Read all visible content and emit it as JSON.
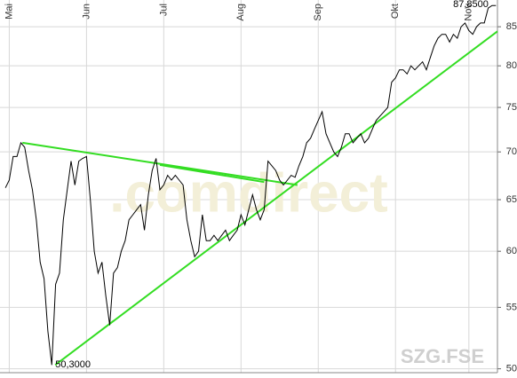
{
  "chart_data": {
    "type": "line",
    "watermark": ".comdirect",
    "symbol": "SZG.FSE",
    "x": [
      0,
      1,
      2,
      3,
      4,
      5,
      6,
      7,
      8,
      9,
      10,
      11,
      12,
      13,
      14,
      15,
      16,
      17,
      18,
      19,
      20,
      21,
      22,
      23,
      24,
      25,
      26,
      27,
      28,
      29,
      30,
      31,
      32,
      33,
      34,
      35,
      36,
      37,
      38,
      39,
      40,
      41,
      42,
      43,
      44,
      45,
      46,
      47,
      48,
      49,
      50,
      51,
      52,
      53,
      54,
      55,
      56,
      57,
      58,
      59,
      60,
      61,
      62,
      63,
      64,
      65,
      66,
      67,
      68,
      69,
      70,
      71,
      72,
      73,
      74,
      75,
      76,
      77,
      78,
      79,
      80,
      81,
      82,
      83,
      84,
      85,
      86,
      87,
      88,
      89,
      90,
      91,
      92,
      93,
      94,
      95,
      96,
      97,
      98,
      99,
      100,
      101,
      102,
      103,
      104,
      105,
      106,
      107,
      108,
      109,
      110,
      111,
      112,
      113,
      114,
      115,
      116,
      117,
      118,
      119,
      120,
      121,
      122,
      123,
      124,
      125,
      126,
      127
    ],
    "series": [
      {
        "name": "SZG.FSE",
        "color": "#000000",
        "values": [
          66.2,
          67,
          69.5,
          69.5,
          71,
          70.5,
          68,
          66,
          63,
          59,
          57.5,
          53,
          50.3,
          57,
          58,
          63,
          66,
          69,
          66.5,
          69,
          69.3,
          69.5,
          65,
          60,
          58,
          59,
          56,
          53.5,
          58,
          58.5,
          60,
          61,
          63,
          63.5,
          64,
          64.5,
          62,
          65.5,
          68,
          69.3,
          66,
          66.5,
          67.5,
          67,
          67.5,
          67,
          66.5,
          63,
          61,
          59.5,
          60,
          63.5,
          61,
          61,
          61.5,
          61,
          61.5,
          62,
          61,
          61.5,
          62,
          63.5,
          62.5,
          64,
          65.5,
          64,
          63,
          64,
          69,
          68.5,
          68,
          67,
          66.5,
          67,
          67.5,
          67.3,
          68.5,
          69.5,
          71,
          71.5,
          72.5,
          73.5,
          74.5,
          72,
          71,
          70,
          69.5,
          70.5,
          72,
          72,
          71,
          71.5,
          72,
          71,
          71.5,
          72.5,
          73.5,
          74,
          74.5,
          75,
          78,
          78.5,
          79.5,
          79.5,
          79,
          80,
          79.5,
          80,
          80.5,
          79.5,
          81,
          82.5,
          83.5,
          84,
          84,
          83,
          84,
          83.5,
          85,
          85.5,
          84.5,
          84,
          85,
          85.5,
          85.5,
          87.5,
          87.85,
          87.85
        ]
      }
    ],
    "trendlines": {
      "color": "#33dd22",
      "lines": [
        {
          "x": [
            4.4,
            75.6
          ],
          "y": [
            71,
            66.5
          ]
        },
        {
          "x": [
            40,
            67
          ],
          "y": [
            68.6,
            66.8
          ]
        },
        {
          "x": [
            12.9,
            127.4
          ],
          "y": [
            50.3,
            84.4
          ]
        }
      ]
    },
    "annotations": [
      {
        "text": "87,8500",
        "x": 126,
        "y": 87.85
      },
      {
        "text": "50,3000",
        "x": 12,
        "y": 50.3
      }
    ],
    "xlim": [
      -1.4,
      127.4
    ],
    "xticks": [
      {
        "value": 1,
        "label": "Mai"
      },
      {
        "value": 21,
        "label": "Jun"
      },
      {
        "value": 41,
        "label": "Jul"
      },
      {
        "value": 61,
        "label": "Aug"
      },
      {
        "value": 81,
        "label": "Sep"
      },
      {
        "value": 101,
        "label": "Okt"
      },
      {
        "value": 120,
        "label": "Nov"
      }
    ],
    "ylim": [
      49.7,
      88.6
    ],
    "yticks": [
      50,
      55,
      60,
      65,
      70,
      75,
      80,
      85
    ],
    "log_scale": true,
    "grid": true
  }
}
